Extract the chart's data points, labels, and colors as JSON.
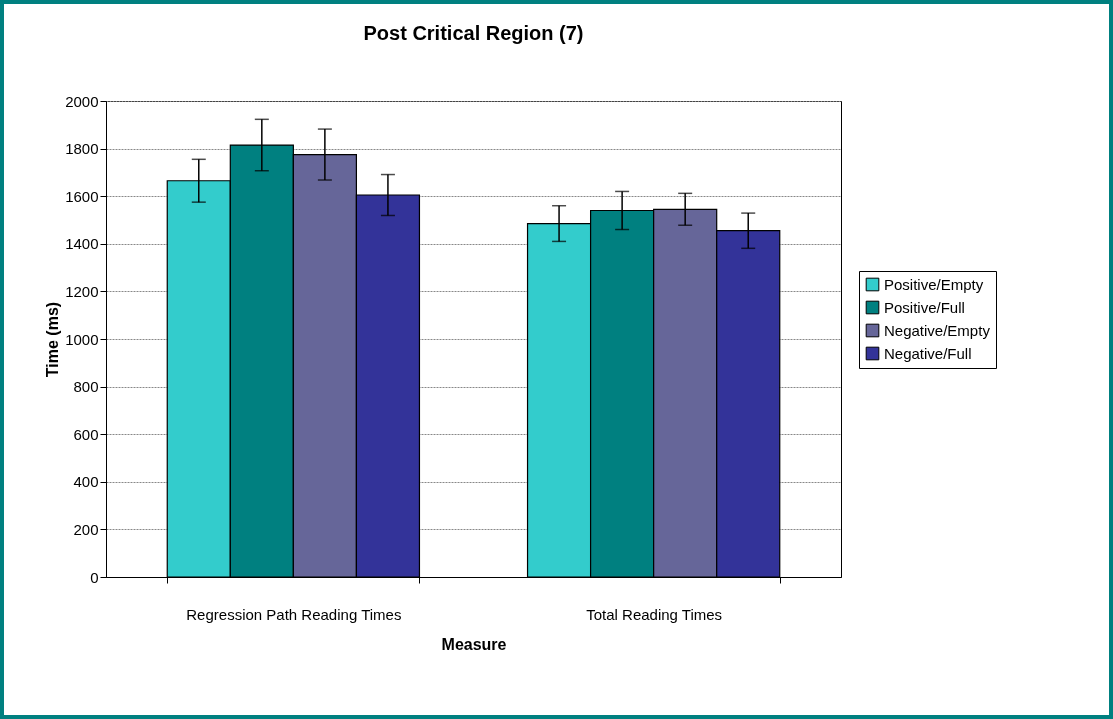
{
  "chart_data": {
    "type": "bar",
    "title": "Post Critical Region (7)",
    "xlabel": "Measure",
    "ylabel": "Time (ms)",
    "categories": [
      "Regression Path Reading Times",
      "Total Reading Times"
    ],
    "series": [
      {
        "name": "Positive/Empty",
        "color": "#33cccc",
        "values": [
          1665,
          1485
        ],
        "errors": [
          90,
          75
        ]
      },
      {
        "name": "Positive/Full",
        "color": "#008080",
        "values": [
          1815,
          1540
        ],
        "errors": [
          108,
          80
        ]
      },
      {
        "name": "Negative/Empty",
        "color": "#666699",
        "values": [
          1775,
          1545
        ],
        "errors": [
          107,
          67
        ]
      },
      {
        "name": "Negative/Full",
        "color": "#333399",
        "values": [
          1605,
          1455
        ],
        "errors": [
          86,
          74
        ]
      }
    ],
    "ylim": [
      0,
      2000
    ],
    "yticks": [
      0,
      200,
      400,
      600,
      800,
      1000,
      1200,
      1400,
      1600,
      1800,
      2000
    ],
    "grid": "y",
    "legend": "right"
  }
}
